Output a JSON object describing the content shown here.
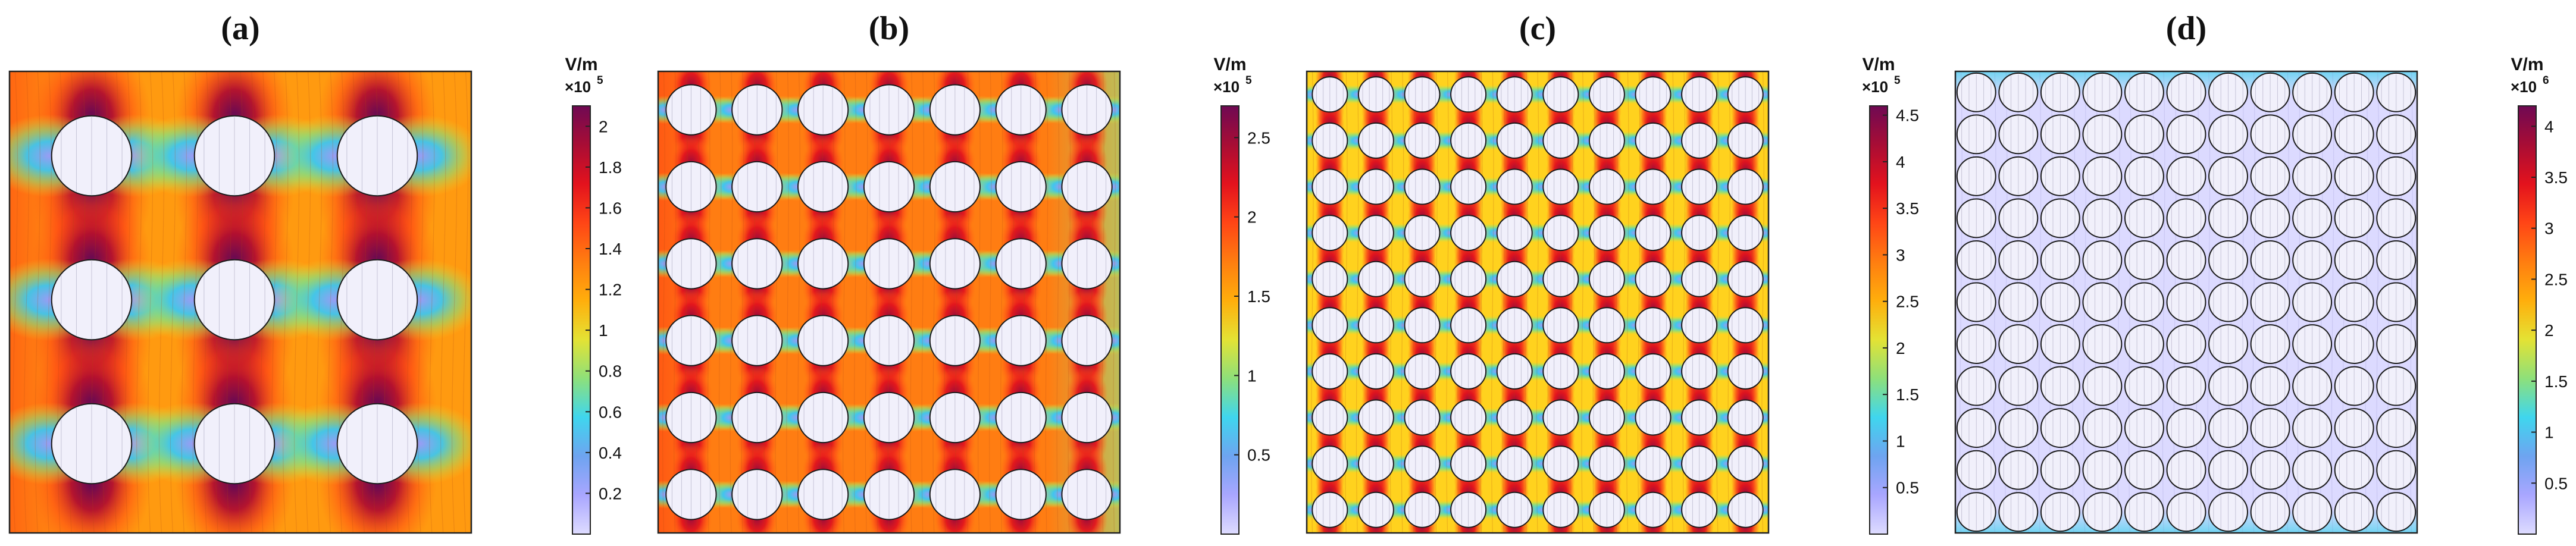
{
  "figure": {
    "field_unit": "V/m",
    "colors": {
      "colormap": [
        "#dedcff",
        "#a9a6ff",
        "#6ea4f0",
        "#3fd6ee",
        "#8ee07a",
        "#e4e234",
        "#ffae0c",
        "#ff7d10",
        "#ff4516",
        "#e3121d",
        "#a80d35",
        "#6f0953"
      ],
      "inclusion_fill": "#f1f0fb",
      "inclusion_stroke": "#1a1a1a",
      "frame": "#222222"
    },
    "panels": [
      {
        "label": "(a)",
        "grid": [
          3,
          3
        ],
        "inclusion_size": "small",
        "colorbar": {
          "unit": "V/m",
          "multiplier": "×10",
          "exponent": "5",
          "range": [
            0,
            2.1
          ],
          "ticks": [
            "0.2",
            "0.4",
            "0.6",
            "0.8",
            "1",
            "1.2",
            "1.4",
            "1.6",
            "1.8",
            "2"
          ],
          "tick_values": [
            0.2,
            0.4,
            0.6,
            0.8,
            1.0,
            1.2,
            1.4,
            1.6,
            1.8,
            2.0
          ]
        }
      },
      {
        "label": "(b)",
        "grid": [
          7,
          6
        ],
        "inclusion_size": "medium",
        "colorbar": {
          "unit": "V/m",
          "multiplier": "×10",
          "exponent": "5",
          "range": [
            0,
            2.7
          ],
          "ticks": [
            "0.5",
            "1",
            "1.5",
            "2",
            "2.5"
          ],
          "tick_values": [
            0.5,
            1.0,
            1.5,
            2.0,
            2.5
          ]
        }
      },
      {
        "label": "(c)",
        "grid": [
          10,
          10
        ],
        "inclusion_size": "medium",
        "colorbar": {
          "unit": "V/m",
          "multiplier": "×10",
          "exponent": "5",
          "range": [
            0,
            4.6
          ],
          "ticks": [
            "0.5",
            "1",
            "1.5",
            "2",
            "2.5",
            "3",
            "3.5",
            "4",
            "4.5"
          ],
          "tick_values": [
            0.5,
            1.0,
            1.5,
            2.0,
            2.5,
            3.0,
            3.5,
            4.0,
            4.5
          ]
        }
      },
      {
        "label": "(d)",
        "grid": [
          11,
          11
        ],
        "inclusion_size": "large",
        "colorbar": {
          "unit": "V/m",
          "multiplier": "×10",
          "exponent": "6",
          "range": [
            0,
            4.2
          ],
          "ticks": [
            "0.5",
            "1",
            "1.5",
            "2",
            "2.5",
            "3",
            "3.5",
            "4"
          ],
          "tick_values": [
            0.5,
            1.0,
            1.5,
            2.0,
            2.5,
            3.0,
            3.5,
            4.0
          ]
        }
      }
    ]
  }
}
